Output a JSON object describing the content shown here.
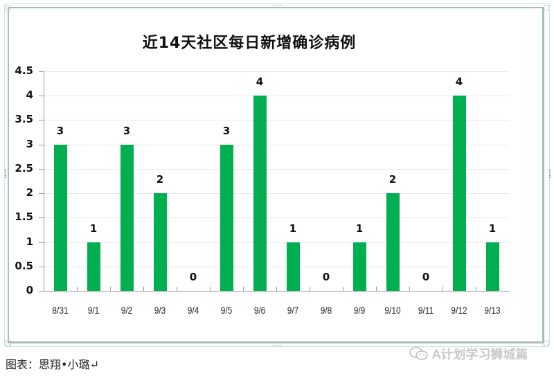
{
  "chart_data": {
    "type": "bar",
    "title": "近14天社区每日新增确诊病例",
    "xlabel": "",
    "ylabel": "",
    "categories": [
      "8/31",
      "9/1",
      "9/2",
      "9/3",
      "9/4",
      "9/5",
      "9/6",
      "9/7",
      "9/8",
      "9/9",
      "9/10",
      "9/11",
      "9/12",
      "9/13"
    ],
    "values": [
      3,
      1,
      3,
      2,
      0,
      3,
      4,
      1,
      0,
      1,
      2,
      0,
      4,
      1
    ],
    "ylim": [
      0,
      4.5
    ],
    "yticks": [
      "0",
      "0.5",
      "1",
      "1.5",
      "2",
      "2.5",
      "3",
      "3.5",
      "4",
      "4.5"
    ],
    "grid": true,
    "legend": null,
    "data_labels": true,
    "bar_color": "#00b050"
  },
  "caption": "图表：思翔•小璐↵",
  "watermark": "A计划学习狮城篇",
  "colors": {
    "bar": "#00b050",
    "frame": "#a9bcbc",
    "grid": "#e8e8e8"
  }
}
